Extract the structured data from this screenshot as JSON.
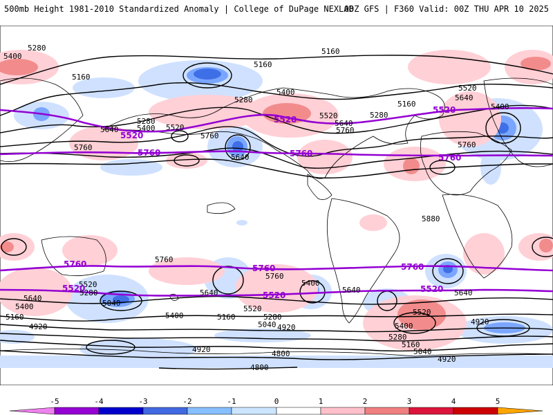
{
  "header": {
    "left_title": "500mb Height 1981-2010 Standardized Anomaly | College of DuPage NEXLAB",
    "right_title": "00Z GFS | F360 Valid: 00Z THU APR 10 2025"
  },
  "contour_labels": {
    "black": [
      {
        "text": "5280"
      },
      {
        "text": "5400"
      },
      {
        "text": "5160"
      },
      {
        "text": "5160"
      },
      {
        "text": "5160"
      },
      {
        "text": "5280"
      },
      {
        "text": "5400"
      },
      {
        "text": "5520"
      },
      {
        "text": "5280"
      },
      {
        "text": "5400"
      },
      {
        "text": "5640"
      },
      {
        "text": "5760"
      },
      {
        "text": "5760"
      },
      {
        "text": "5640"
      },
      {
        "text": "5520"
      },
      {
        "text": "5640"
      },
      {
        "text": "5760"
      },
      {
        "text": "5280"
      },
      {
        "text": "5160"
      },
      {
        "text": "5520"
      },
      {
        "text": "5640"
      },
      {
        "text": "5400"
      },
      {
        "text": "5760"
      },
      {
        "text": "5880"
      },
      {
        "text": "5760"
      },
      {
        "text": "5760"
      },
      {
        "text": "5520"
      },
      {
        "text": "5280"
      },
      {
        "text": "5640"
      },
      {
        "text": "5400"
      },
      {
        "text": "5160"
      },
      {
        "text": "5040"
      },
      {
        "text": "4920"
      },
      {
        "text": "5640"
      },
      {
        "text": "5400"
      },
      {
        "text": "5160"
      },
      {
        "text": "5520"
      },
      {
        "text": "5280"
      },
      {
        "text": "5040"
      },
      {
        "text": "4920"
      },
      {
        "text": "4800"
      },
      {
        "text": "4800"
      },
      {
        "text": "5400"
      },
      {
        "text": "5640"
      },
      {
        "text": "5520"
      },
      {
        "text": "5400"
      },
      {
        "text": "5280"
      },
      {
        "text": "5160"
      },
      {
        "text": "5040"
      },
      {
        "text": "4920"
      },
      {
        "text": "5640"
      },
      {
        "text": "4920"
      },
      {
        "text": "4920"
      }
    ],
    "purple": [
      {
        "text": "5520"
      },
      {
        "text": "5520"
      },
      {
        "text": "5520"
      },
      {
        "text": "5760"
      },
      {
        "text": "5760"
      },
      {
        "text": "5760"
      },
      {
        "text": "5760"
      },
      {
        "text": "5760"
      },
      {
        "text": "5760"
      },
      {
        "text": "5520"
      },
      {
        "text": "5520"
      },
      {
        "text": "5520"
      }
    ]
  },
  "colorbar": {
    "ticks": [
      "-5",
      "-4",
      "-3",
      "-2",
      "-1",
      "0",
      "1",
      "2",
      "3",
      "4",
      "5"
    ],
    "colors": {
      "lt_m5": "#ee82ee",
      "m5_m4": "#9400d3",
      "m4_m3": "#0000cd",
      "m3_m2": "#4169e1",
      "m2_m1": "#87bfff",
      "m1_0": "#cce5ff",
      "0_p1": "#ffffff",
      "p1_p2": "#ffc0cb",
      "p2_p3": "#f08080",
      "p3_p4": "#dc143c",
      "p4_p5": "#cc0000",
      "gt_p5": "#ffa500"
    }
  },
  "colors": {
    "neg1": "#c6dcff",
    "neg2": "#7aa6ff",
    "neg3": "#3f6fe6",
    "pos1": "#ffd0d6",
    "pos2": "#f28c8c",
    "contour": "#000000",
    "highlight": "#9400d3",
    "coast": "#000000"
  }
}
